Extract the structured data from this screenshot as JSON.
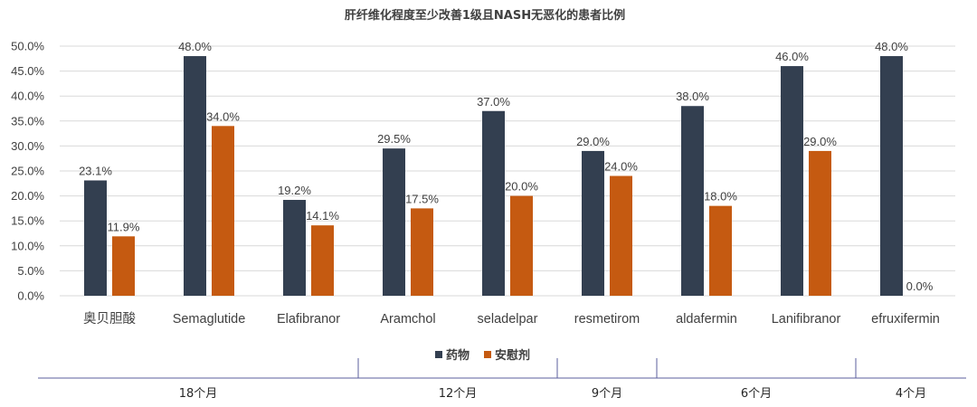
{
  "chart_data": {
    "type": "bar",
    "title": "肝纤维化程度至少改善1级且NASH无恶化的患者比例",
    "categories": [
      "奥贝胆酸",
      "Semaglutide",
      "Elafibranor",
      "Aramchol",
      "seladelpar",
      "resmetirom",
      "aldafermin",
      "Lanifibranor",
      "efruxifermin"
    ],
    "series": [
      {
        "name": "药物",
        "color": "#333f50",
        "values": [
          23.1,
          48.0,
          19.2,
          29.5,
          37.0,
          29.0,
          38.0,
          46.0,
          48.0
        ]
      },
      {
        "name": "安慰剂",
        "color": "#c55a11",
        "values": [
          11.9,
          34.0,
          14.1,
          17.5,
          20.0,
          24.0,
          18.0,
          29.0,
          0.0
        ]
      }
    ],
    "ylim": [
      0,
      50
    ],
    "ytick_step": 5,
    "grid": true,
    "legend_position": "bottom-center",
    "periods": [
      {
        "label": "18个月",
        "from": 0,
        "to": 3
      },
      {
        "label": "12个月",
        "from": 3,
        "to": 5
      },
      {
        "label": "9个月",
        "from": 5,
        "to": 6
      },
      {
        "label": "6个月",
        "from": 6,
        "to": 8
      },
      {
        "label": "4个月",
        "from": 8,
        "to": 9
      }
    ]
  }
}
